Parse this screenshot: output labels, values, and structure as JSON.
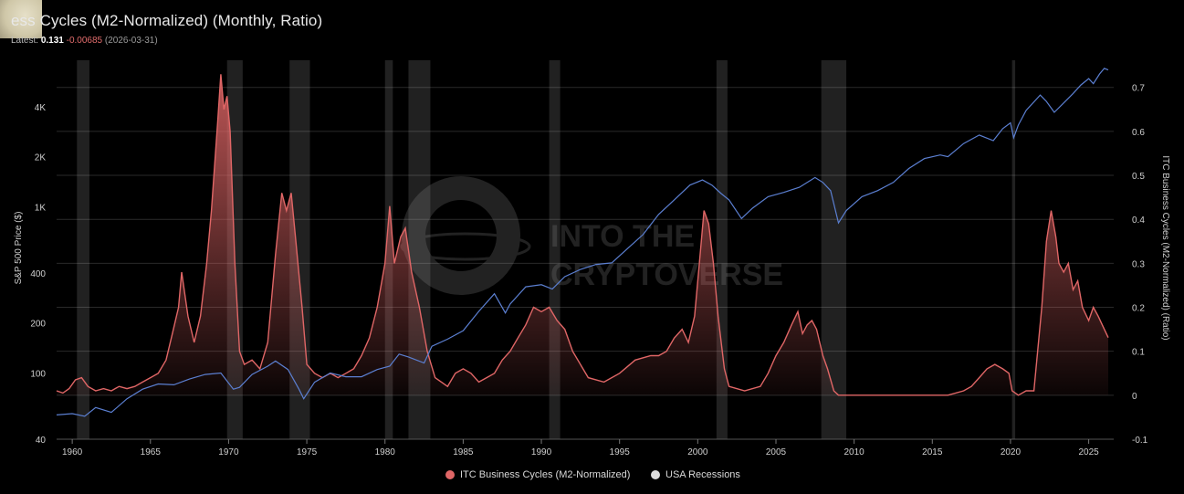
{
  "header": {
    "title": "ess Cycles (M2-Normalized) (Monthly, Ratio)",
    "latest_label": "Latest:",
    "latest_value": "0.131",
    "latest_change": "-0.00685",
    "latest_date": "(2026-03-31)"
  },
  "watermark": {
    "line1": "INTO THE",
    "line2": "CRYPTOVERSE"
  },
  "legend": {
    "itc_label": "ITC Business Cycles (M2-Normalized)",
    "recession_label": "USA Recessions"
  },
  "colors": {
    "itc": "#e06666",
    "sp500": "#5b7fd1",
    "recession": "#ffffff",
    "grid": "#2a2a2a",
    "text": "#cfcfcf"
  },
  "chart_data": {
    "type": "line",
    "title": "ess Cycles (M2-Normalized) (Monthly, Ratio)",
    "xlabel": "",
    "xlim": [
      1959,
      2026.6
    ],
    "x_ticks": [
      "1960",
      "1965",
      "1970",
      "1975",
      "1980",
      "1985",
      "1990",
      "1995",
      "2000",
      "2005",
      "2010",
      "2015",
      "2020",
      "2025"
    ],
    "left_axis": {
      "label": "S&P 500 Price ($)",
      "scale": "log",
      "ylim": [
        40,
        8000
      ],
      "tick_values": [
        40,
        100,
        200,
        400,
        1000,
        2000,
        4000
      ],
      "tick_labels": [
        "40",
        "100",
        "200",
        "400",
        "1K",
        "2K",
        "4K"
      ]
    },
    "right_axis": {
      "label": "ITC Business Cycles (M2-Normalized) (Ratio)",
      "scale": "linear",
      "ylim": [
        -0.1,
        0.77
      ],
      "tick_values": [
        -0.1,
        0,
        0.1,
        0.2,
        0.3,
        0.4,
        0.5,
        0.6,
        0.7
      ],
      "tick_labels": [
        "-0.1",
        "0",
        "0.1",
        "0.2",
        "0.3",
        "0.4",
        "0.5",
        "0.6",
        "0.7"
      ]
    },
    "recessions": [
      [
        1960.3,
        1961.1
      ],
      [
        1969.9,
        1970.9
      ],
      [
        1973.9,
        1975.2
      ],
      [
        1980.0,
        1980.5
      ],
      [
        1981.5,
        1982.9
      ],
      [
        1990.5,
        1991.2
      ],
      [
        2001.2,
        2001.9
      ],
      [
        2007.9,
        2009.5
      ],
      [
        2020.1,
        2020.3
      ]
    ],
    "series": [
      {
        "name": "ITC Business Cycles (M2-Normalized)",
        "axis": "right",
        "x": [
          1959.0,
          1959.4,
          1959.8,
          1960.2,
          1960.6,
          1961.0,
          1961.5,
          1962.0,
          1962.5,
          1963.0,
          1963.5,
          1964.0,
          1964.5,
          1965.0,
          1965.5,
          1966.0,
          1966.4,
          1966.8,
          1967.0,
          1967.4,
          1967.8,
          1968.2,
          1968.6,
          1968.9,
          1969.1,
          1969.3,
          1969.5,
          1969.7,
          1969.9,
          1970.1,
          1970.4,
          1970.7,
          1971.0,
          1971.5,
          1972.0,
          1972.5,
          1973.0,
          1973.4,
          1973.7,
          1974.0,
          1974.3,
          1974.7,
          1975.0,
          1975.5,
          1976.0,
          1976.5,
          1977.0,
          1977.5,
          1978.0,
          1978.5,
          1979.0,
          1979.5,
          1980.0,
          1980.3,
          1980.6,
          1981.0,
          1981.3,
          1981.7,
          1982.2,
          1982.7,
          1983.2,
          1984.0,
          1984.5,
          1985.0,
          1985.5,
          1986.0,
          1986.5,
          1987.0,
          1987.5,
          1988.0,
          1988.5,
          1989.0,
          1989.5,
          1990.0,
          1990.5,
          1991.0,
          1991.5,
          1992.0,
          1993.0,
          1994.0,
          1995.0,
          1996.0,
          1997.0,
          1997.5,
          1998.0,
          1998.5,
          1999.0,
          1999.4,
          1999.8,
          2000.1,
          2000.4,
          2000.7,
          2001.0,
          2001.3,
          2001.7,
          2002.0,
          2003.0,
          2004.0,
          2004.5,
          2005.0,
          2005.5,
          2006.0,
          2006.4,
          2006.7,
          2007.0,
          2007.3,
          2007.6,
          2008.0,
          2008.3,
          2008.7,
          2009.0,
          2010.0,
          2012.0,
          2014.0,
          2016.0,
          2017.0,
          2017.5,
          2018.0,
          2018.5,
          2019.0,
          2019.5,
          2019.9,
          2020.1,
          2020.5,
          2021.0,
          2021.5,
          2022.0,
          2022.3,
          2022.6,
          2022.9,
          2023.1,
          2023.4,
          2023.7,
          2024.0,
          2024.3,
          2024.6,
          2025.0,
          2025.3,
          2025.6,
          2026.0,
          2026.25
        ],
        "values": [
          0.01,
          0.005,
          0.015,
          0.035,
          0.04,
          0.02,
          0.01,
          0.015,
          0.01,
          0.02,
          0.015,
          0.02,
          0.03,
          0.04,
          0.05,
          0.08,
          0.14,
          0.2,
          0.28,
          0.18,
          0.12,
          0.18,
          0.3,
          0.42,
          0.52,
          0.62,
          0.73,
          0.65,
          0.68,
          0.6,
          0.3,
          0.1,
          0.07,
          0.08,
          0.06,
          0.12,
          0.32,
          0.46,
          0.42,
          0.46,
          0.35,
          0.2,
          0.07,
          0.05,
          0.04,
          0.05,
          0.04,
          0.05,
          0.06,
          0.09,
          0.13,
          0.2,
          0.3,
          0.43,
          0.3,
          0.36,
          0.38,
          0.28,
          0.2,
          0.1,
          0.04,
          0.02,
          0.05,
          0.06,
          0.05,
          0.03,
          0.04,
          0.05,
          0.08,
          0.1,
          0.13,
          0.16,
          0.2,
          0.19,
          0.2,
          0.17,
          0.15,
          0.1,
          0.04,
          0.03,
          0.05,
          0.08,
          0.09,
          0.09,
          0.1,
          0.13,
          0.15,
          0.12,
          0.18,
          0.3,
          0.42,
          0.39,
          0.3,
          0.18,
          0.06,
          0.02,
          0.01,
          0.02,
          0.05,
          0.09,
          0.12,
          0.16,
          0.19,
          0.14,
          0.16,
          0.17,
          0.15,
          0.09,
          0.06,
          0.01,
          0,
          0,
          0,
          0,
          0,
          0.01,
          0.02,
          0.04,
          0.06,
          0.07,
          0.06,
          0.05,
          0.01,
          0,
          0.01,
          0.01,
          0.2,
          0.35,
          0.42,
          0.36,
          0.3,
          0.28,
          0.3,
          0.24,
          0.26,
          0.2,
          0.17,
          0.2,
          0.18,
          0.15,
          0.131
        ]
      },
      {
        "name": "S&P 500",
        "axis": "left",
        "x": [
          1959.0,
          1960.0,
          1960.8,
          1961.5,
          1962.5,
          1963.5,
          1964.5,
          1965.5,
          1966.5,
          1967.5,
          1968.5,
          1969.5,
          1970.3,
          1970.7,
          1971.5,
          1972.5,
          1973.0,
          1973.8,
          1974.5,
          1974.8,
          1975.5,
          1976.5,
          1977.5,
          1978.5,
          1979.5,
          1980.3,
          1980.9,
          1981.5,
          1982.5,
          1983.0,
          1984.0,
          1985.0,
          1986.0,
          1987.0,
          1987.7,
          1988.0,
          1989.0,
          1990.0,
          1990.7,
          1991.5,
          1992.5,
          1993.5,
          1994.5,
          1995.5,
          1996.5,
          1997.5,
          1998.5,
          1999.5,
          2000.3,
          2000.9,
          2001.5,
          2002.0,
          2002.8,
          2003.5,
          2004.5,
          2005.5,
          2006.5,
          2007.5,
          2008.0,
          2008.5,
          2009.0,
          2009.5,
          2010.5,
          2011.5,
          2012.5,
          2013.5,
          2014.5,
          2015.5,
          2016.0,
          2017.0,
          2018.0,
          2018.9,
          2019.5,
          2020.0,
          2020.2,
          2020.5,
          2021.0,
          2021.9,
          2022.3,
          2022.8,
          2023.5,
          2024.0,
          2024.5,
          2025.0,
          2025.3,
          2025.7,
          2026.0,
          2026.25
        ],
        "values": [
          56,
          57,
          55,
          62,
          58,
          70,
          80,
          86,
          85,
          92,
          98,
          100,
          80,
          82,
          98,
          110,
          118,
          105,
          80,
          70,
          88,
          100,
          95,
          95,
          105,
          110,
          130,
          125,
          115,
          145,
          160,
          180,
          235,
          300,
          230,
          260,
          330,
          340,
          320,
          380,
          420,
          450,
          460,
          560,
          680,
          900,
          1100,
          1350,
          1450,
          1350,
          1200,
          1100,
          850,
          980,
          1150,
          1220,
          1310,
          1500,
          1400,
          1250,
          800,
          950,
          1150,
          1250,
          1400,
          1700,
          1950,
          2050,
          2000,
          2400,
          2700,
          2500,
          2950,
          3200,
          2600,
          3100,
          3800,
          4700,
          4300,
          3700,
          4300,
          4800,
          5400,
          5900,
          5500,
          6300,
          6800,
          6650
        ]
      }
    ]
  }
}
